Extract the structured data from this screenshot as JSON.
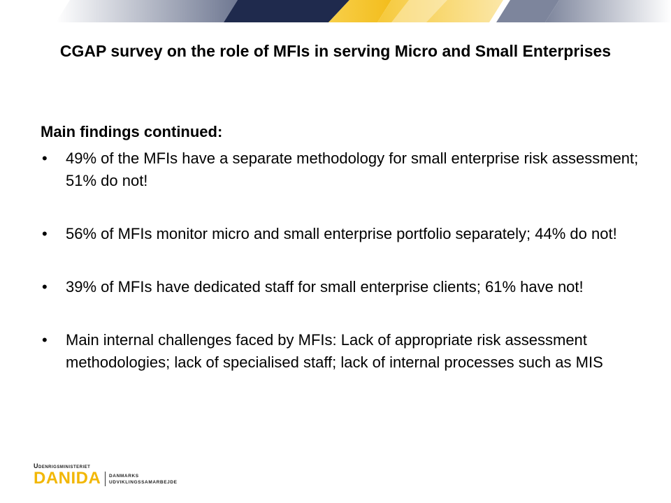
{
  "slide": {
    "title": "CGAP survey on the role of MFIs in serving Micro and Small Enterprises",
    "subheading": "Main findings continued:",
    "bullet_symbol": "•",
    "bullets": [
      "49% of the MFIs have a separate methodology for small enterprise risk assessment; 51% do not!",
      "56% of MFIs monitor micro and small enterprise portfolio separately; 44% do not!",
      "39% of MFIs have dedicated staff for small enterprise clients; 61% have not!",
      "Main internal challenges faced by MFIs: Lack of appropriate risk assessment methodologies; lack of specialised staff; lack of internal processes such as MIS"
    ]
  },
  "footer": {
    "ministry": "Udenrigsministeriet",
    "brand": "DANIDA",
    "tagline_line1": "DANMARKS",
    "tagline_line2": "UDVIKLINGSSAMARBEJDE"
  },
  "colors": {
    "navy": "#1f2a4d",
    "gold": "#f5c430",
    "slate": "#7d859c",
    "brand_yellow": "#f2b705"
  }
}
